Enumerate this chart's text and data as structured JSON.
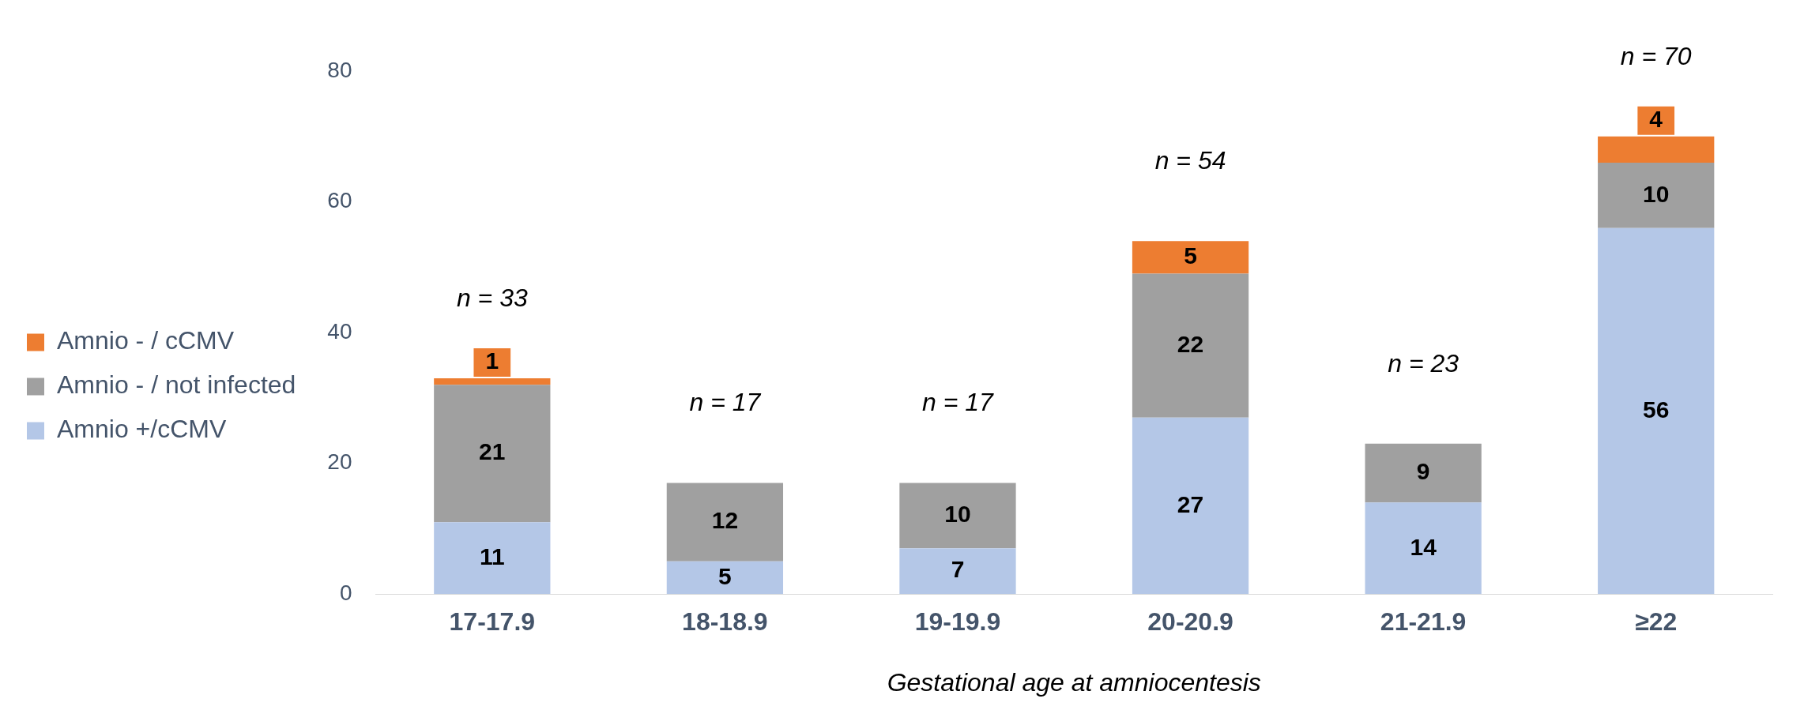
{
  "chart_data": {
    "type": "bar",
    "stacked": true,
    "categories": [
      "17-17.9",
      "18-18.9",
      "19-19.9",
      "20-20.9",
      "21-21.9",
      "≥22"
    ],
    "series": [
      {
        "name": "Amnio +/cCMV",
        "color": "#b4c7e7",
        "values": [
          11,
          5,
          7,
          27,
          14,
          56
        ]
      },
      {
        "name": "Amnio - / not infected",
        "color": "#a0a0a0",
        "values": [
          21,
          12,
          10,
          22,
          9,
          10
        ]
      },
      {
        "name": "Amnio - / cCMV",
        "color": "#ed7d31",
        "values": [
          1,
          null,
          null,
          5,
          null,
          4
        ]
      }
    ],
    "xlabel": "Gestational age at amniocentesis",
    "ylim": [
      0,
      80
    ],
    "yticks": [
      0,
      20,
      40,
      60,
      80
    ],
    "grid": false,
    "legend": "left",
    "data_labels": true,
    "totals": [
      "n = 33",
      "n = 17",
      "n = 17",
      "n = 54",
      "n = 23",
      "n = 70"
    ]
  }
}
